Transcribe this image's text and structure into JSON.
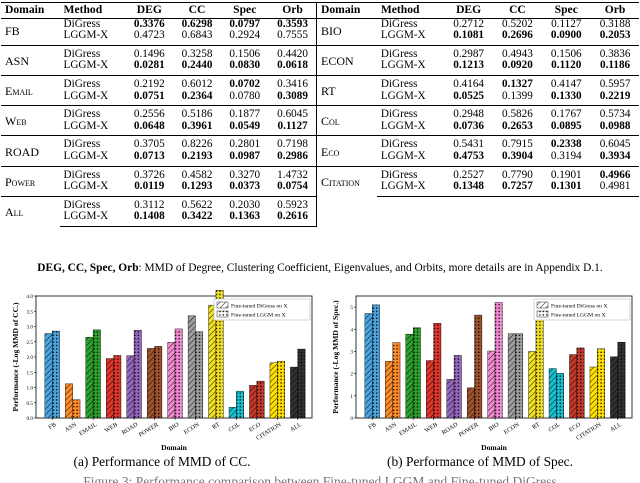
{
  "table": {
    "headers": [
      "Domain",
      "Method",
      "DEG",
      "CC",
      "Spec",
      "Orb"
    ],
    "left": [
      {
        "domain": "FB",
        "rows": [
          {
            "method": "DiGress",
            "vals": [
              "0.3376",
              "0.6298",
              "0.0797",
              "0.3593"
            ],
            "bold": [
              true,
              true,
              true,
              true
            ]
          },
          {
            "method": "LGGM-X",
            "vals": [
              "0.4723",
              "0.6843",
              "0.2924",
              "0.7555"
            ],
            "bold": [
              false,
              false,
              false,
              false
            ]
          }
        ]
      },
      {
        "domain": "ASN",
        "rows": [
          {
            "method": "DiGress",
            "vals": [
              "0.1496",
              "0.3258",
              "0.1506",
              "0.4420"
            ],
            "bold": [
              false,
              false,
              false,
              false
            ]
          },
          {
            "method": "LGGM-X",
            "vals": [
              "0.0281",
              "0.2440",
              "0.0830",
              "0.0618"
            ],
            "bold": [
              true,
              true,
              true,
              true
            ]
          }
        ]
      },
      {
        "domain": "Email",
        "rows": [
          {
            "method": "DiGress",
            "vals": [
              "0.2192",
              "0.6012",
              "0.0702",
              "0.3416"
            ],
            "bold": [
              false,
              false,
              true,
              false
            ]
          },
          {
            "method": "LGGM-X",
            "vals": [
              "0.0751",
              "0.2364",
              "0.0780",
              "0.3089"
            ],
            "bold": [
              true,
              true,
              false,
              true
            ]
          }
        ]
      },
      {
        "domain": "Web",
        "rows": [
          {
            "method": "DiGress",
            "vals": [
              "0.2556",
              "0.5186",
              "0.1877",
              "0.6045"
            ],
            "bold": [
              false,
              false,
              false,
              false
            ]
          },
          {
            "method": "LGGM-X",
            "vals": [
              "0.0648",
              "0.3961",
              "0.0549",
              "0.1127"
            ],
            "bold": [
              true,
              true,
              true,
              true
            ]
          }
        ]
      },
      {
        "domain": "ROAD",
        "rows": [
          {
            "method": "DiGress",
            "vals": [
              "0.3705",
              "0.8226",
              "0.2801",
              "0.7198"
            ],
            "bold": [
              false,
              false,
              false,
              false
            ]
          },
          {
            "method": "LGGM-X",
            "vals": [
              "0.0713",
              "0.2193",
              "0.0987",
              "0.2986"
            ],
            "bold": [
              true,
              true,
              true,
              true
            ]
          }
        ]
      },
      {
        "domain": "Power",
        "rows": [
          {
            "method": "DiGress",
            "vals": [
              "0.3726",
              "0.4582",
              "0.3270",
              "1.4732"
            ],
            "bold": [
              false,
              false,
              false,
              false
            ]
          },
          {
            "method": "LGGM-X",
            "vals": [
              "0.0119",
              "0.1293",
              "0.0373",
              "0.0754"
            ],
            "bold": [
              true,
              true,
              true,
              true
            ]
          }
        ]
      },
      {
        "domain": "All",
        "rows": [
          {
            "method": "DiGress",
            "vals": [
              "0.3112",
              "0.5622",
              "0.2030",
              "0.5923"
            ],
            "bold": [
              false,
              false,
              false,
              false
            ]
          },
          {
            "method": "LGGM-X",
            "vals": [
              "0.1408",
              "0.3422",
              "0.1363",
              "0.2616"
            ],
            "bold": [
              true,
              true,
              true,
              true
            ]
          }
        ]
      }
    ],
    "right": [
      {
        "domain": "BIO",
        "rows": [
          {
            "method": "DiGress",
            "vals": [
              "0.2712",
              "0.5202",
              "0.1127",
              "0.3188"
            ],
            "bold": [
              false,
              false,
              false,
              false
            ]
          },
          {
            "method": "LGGM-X",
            "vals": [
              "0.1081",
              "0.2696",
              "0.0900",
              "0.2053"
            ],
            "bold": [
              true,
              true,
              true,
              true
            ]
          }
        ]
      },
      {
        "domain": "ECON",
        "rows": [
          {
            "method": "DiGress",
            "vals": [
              "0.2987",
              "0.4943",
              "0.1506",
              "0.3836"
            ],
            "bold": [
              false,
              false,
              false,
              false
            ]
          },
          {
            "method": "LGGM-X",
            "vals": [
              "0.1213",
              "0.0920",
              "0.1120",
              "0.1186"
            ],
            "bold": [
              true,
              true,
              true,
              true
            ]
          }
        ]
      },
      {
        "domain": "RT",
        "rows": [
          {
            "method": "DiGress",
            "vals": [
              "0.4164",
              "0.1327",
              "0.4147",
              "0.5957"
            ],
            "bold": [
              false,
              true,
              false,
              false
            ]
          },
          {
            "method": "LGGM-X",
            "vals": [
              "0.0525",
              "0.1399",
              "0.1330",
              "0.2219"
            ],
            "bold": [
              true,
              false,
              true,
              true
            ]
          }
        ]
      },
      {
        "domain": "Col",
        "rows": [
          {
            "method": "DiGress",
            "vals": [
              "0.2948",
              "0.5826",
              "0.1767",
              "0.5734"
            ],
            "bold": [
              false,
              false,
              false,
              false
            ]
          },
          {
            "method": "LGGM-X",
            "vals": [
              "0.0736",
              "0.2653",
              "0.0895",
              "0.0988"
            ],
            "bold": [
              true,
              true,
              true,
              true
            ]
          }
        ]
      },
      {
        "domain": "Eco",
        "rows": [
          {
            "method": "DiGress",
            "vals": [
              "0.5431",
              "0.7915",
              "0.2338",
              "0.6045"
            ],
            "bold": [
              false,
              false,
              true,
              false
            ]
          },
          {
            "method": "LGGM-X",
            "vals": [
              "0.4753",
              "0.3904",
              "0.3194",
              "0.3934"
            ],
            "bold": [
              true,
              true,
              false,
              true
            ]
          }
        ]
      },
      {
        "domain": "Citation",
        "rows": [
          {
            "method": "DiGress",
            "vals": [
              "0.2527",
              "0.7790",
              "0.1901",
              "0.4966"
            ],
            "bold": [
              false,
              false,
              false,
              true
            ]
          },
          {
            "method": "LGGM-X",
            "vals": [
              "0.1348",
              "0.7257",
              "0.1301",
              "0.4981"
            ],
            "bold": [
              true,
              true,
              true,
              false
            ]
          }
        ]
      }
    ]
  },
  "caption": {
    "abbr": "DEG, CC, Spec, Orb",
    "text": ": MMD of Degree, Clustering Coefficient, Eigenvalues, and Orbits, more details are in Appendix D.1."
  },
  "subcaptions": {
    "a": "(a) Performance of MMD of CC.",
    "b": "(b) Performance of MMD of Spec."
  },
  "figure_caption": "Figure 3: Performance comparison between Fine-tuned LGGM and Fine-tuned DiGress",
  "chart_data": [
    {
      "type": "bar",
      "title": "",
      "xlabel": "Domain",
      "ylabel": "Performance (-Log MMD of CC.)",
      "ylim": [
        0,
        4.0
      ],
      "yticks": [
        "0.0",
        "0.5",
        "1.0",
        "1.5",
        "2.0",
        "2.5",
        "3.0",
        "3.5",
        "4.0"
      ],
      "categories": [
        "FB",
        "ASN",
        "EMAIL",
        "WEB",
        "ROAD",
        "POWER",
        "BIO",
        "ECON",
        "RT",
        "COL",
        "ECO",
        "CITATION",
        "ALL"
      ],
      "colors": [
        "#4aa3df",
        "#ff8c2a",
        "#2ca02c",
        "#e0362c",
        "#9467bd",
        "#a0522d",
        "#f38ad0",
        "#9e9e9e",
        "#f0e020",
        "#17becf",
        "#c0392b",
        "#ffe000",
        "#303030"
      ],
      "series": [
        {
          "name": "Fine-tuned DiGress on X",
          "values": [
            2.77,
            1.12,
            2.65,
            1.95,
            2.04,
            2.28,
            2.48,
            3.35,
            3.7,
            0.35,
            1.07,
            1.81,
            1.67
          ]
        },
        {
          "name": "Fine-tuned LGGM on X",
          "values": [
            2.85,
            0.6,
            2.89,
            2.05,
            2.88,
            2.35,
            2.92,
            2.83,
            4.19,
            0.88,
            1.21,
            1.86,
            2.26
          ]
        }
      ],
      "legend": "top-right"
    },
    {
      "type": "bar",
      "title": "",
      "xlabel": "Domain",
      "ylabel": "Performance (-Log MMD of Spec.)",
      "ylim": [
        0,
        5.5
      ],
      "yticks": [
        "0",
        "1",
        "2",
        "3",
        "4",
        "5"
      ],
      "categories": [
        "FB",
        "ASN",
        "EMAIL",
        "WEB",
        "ROAD",
        "POWER",
        "BIO",
        "ECON",
        "RT",
        "COL",
        "ECO",
        "CITATION",
        "ALL"
      ],
      "colors": [
        "#4aa3df",
        "#ff8c2a",
        "#2ca02c",
        "#e0362c",
        "#9467bd",
        "#a0522d",
        "#f38ad0",
        "#9e9e9e",
        "#f0e020",
        "#17becf",
        "#c0392b",
        "#ffe000",
        "#303030"
      ],
      "series": [
        {
          "name": "Fine-tuned DiGress on X",
          "values": [
            4.71,
            2.56,
            3.78,
            2.59,
            1.74,
            1.36,
            3.02,
            3.8,
            3.0,
            2.23,
            2.86,
            2.3,
            2.76
          ]
        },
        {
          "name": "Fine-tuned LGGM on X",
          "values": [
            5.1,
            3.4,
            4.07,
            4.27,
            2.82,
            4.64,
            5.21,
            3.8,
            5.31,
            2.02,
            3.16,
            3.12,
            3.42
          ]
        }
      ],
      "legend": "top-right"
    }
  ]
}
